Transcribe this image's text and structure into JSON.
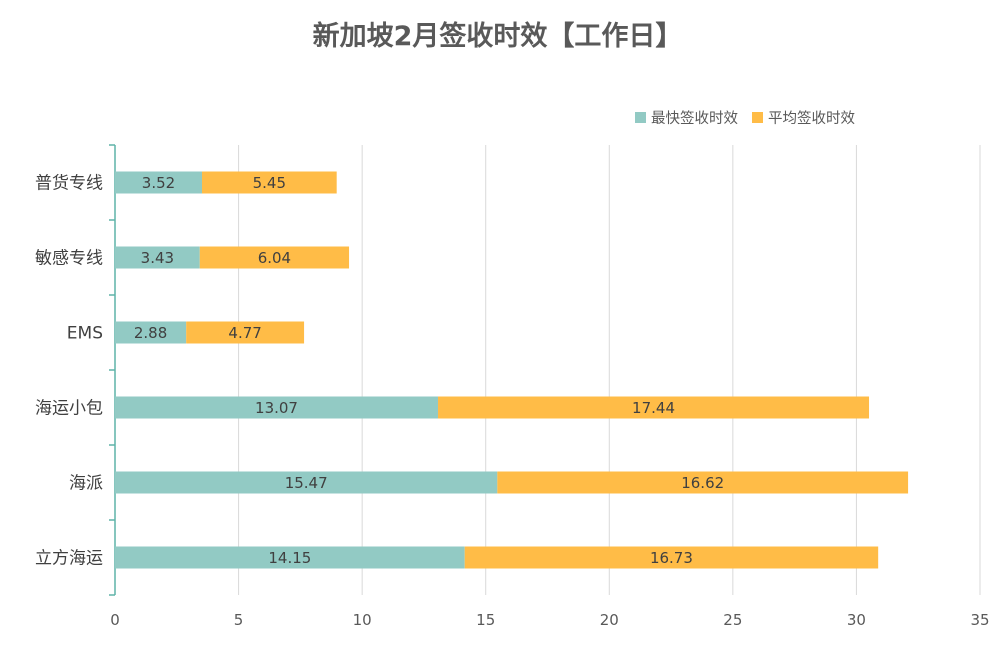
{
  "chart_data": {
    "type": "bar",
    "orientation": "horizontal",
    "stacked": true,
    "title": "新加坡2月签收时效【工作日】",
    "categories": [
      "普货专线",
      "敏感专线",
      "EMS",
      "海运小包",
      "海派",
      "立方海运"
    ],
    "series": [
      {
        "name": "最快签收时效",
        "color": "#92CAC4",
        "values": [
          3.52,
          3.43,
          2.88,
          13.07,
          15.47,
          14.15
        ]
      },
      {
        "name": "平均签收时效",
        "color": "#FFBC47",
        "values": [
          5.45,
          6.04,
          4.77,
          17.44,
          16.62,
          16.73
        ]
      }
    ],
    "xlim": [
      0,
      35
    ],
    "xticks": [
      0,
      5,
      10,
      15,
      20,
      25,
      30,
      35
    ],
    "grid": true,
    "legend_position": "top-right"
  }
}
